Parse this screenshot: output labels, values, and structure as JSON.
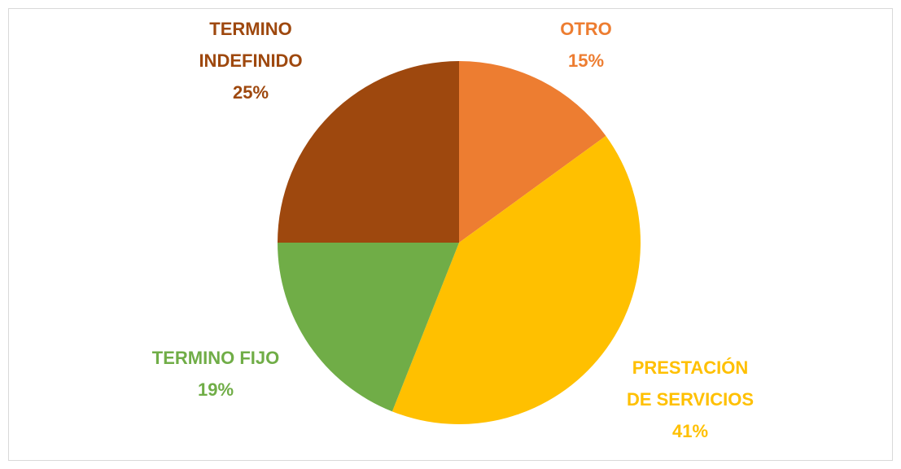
{
  "chart_data": {
    "type": "pie",
    "categories": [
      "OTRO",
      "PRESTACIÓN DE SERVICIOS",
      "TERMINO FIJO",
      "TERMINO INDEFINIDO"
    ],
    "values": [
      15,
      41,
      19,
      25
    ],
    "value_labels": [
      "15%",
      "41%",
      "19%",
      "25%"
    ],
    "colors": [
      "#ed7d31",
      "#ffc000",
      "#70ad47",
      "#9e480e"
    ]
  }
}
